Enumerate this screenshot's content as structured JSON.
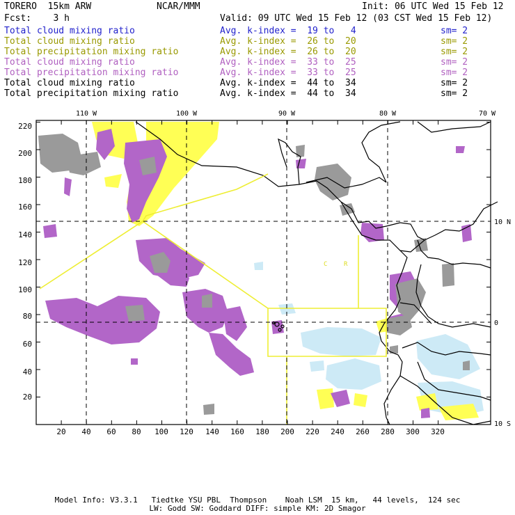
{
  "header": {
    "model": "TORERO  15km ARW",
    "center": "NCAR/MMM",
    "init": "Init: 06 UTC Wed 15 Feb 12",
    "fcst": "Fcst:    3 h",
    "valid": "Valid: 09 UTC Wed 15 Feb 12 (03 CST Wed 15 Feb 12)"
  },
  "legend": [
    {
      "name": "Total cloud mixing ratio",
      "avg": "Avg. k-index =  19 to   4",
      "sm": "sm= 2",
      "color": "#2222cc"
    },
    {
      "name": "Total cloud mixing ratio",
      "avg": "Avg. k-index =  26 to  20",
      "sm": "sm= 2",
      "color": "#999900"
    },
    {
      "name": "Total precipitation mixing ratio",
      "avg": "Avg. k-index =  26 to  20",
      "sm": "sm= 2",
      "color": "#999900"
    },
    {
      "name": "Total cloud mixing ratio",
      "avg": "Avg. k-index =  33 to  25",
      "sm": "sm= 2",
      "color": "#b060c0"
    },
    {
      "name": "Total precipitation mixing ratio",
      "avg": "Avg. k-index =  33 to  25",
      "sm": "sm= 2",
      "color": "#b060c0"
    },
    {
      "name": "Total cloud mixing ratio",
      "avg": "Avg. k-index =  44 to  34",
      "sm": "sm= 2",
      "color": "#000000"
    },
    {
      "name": "Total precipitation mixing ratio",
      "avg": "Avg. k-index =  44 to  34",
      "sm": "sm= 2",
      "color": "#000000"
    }
  ],
  "map": {
    "lon_labels": [
      "110 W",
      "100 W",
      "90 W",
      "80 W",
      "70 W"
    ],
    "lat_labels": [
      "10 N",
      "0",
      "10 S"
    ],
    "x_ticks": [
      "20",
      "40",
      "60",
      "80",
      "100",
      "120",
      "140",
      "160",
      "180",
      "200",
      "220",
      "240",
      "260",
      "280",
      "300",
      "320"
    ],
    "y_ticks": [
      "20",
      "40",
      "60",
      "80",
      "100",
      "120",
      "140",
      "160",
      "180",
      "200",
      "220"
    ],
    "region_labels": [
      "C",
      "R"
    ],
    "colors": {
      "yellow": "#ffff55",
      "purple": "#b266c8",
      "gray": "#9a9a9a",
      "lightblue": "#cdeaf6",
      "box": "#eeee33"
    }
  },
  "footer": {
    "line1": "Model Info: V3.3.1   Tiedtke YSU PBL  Thompson    Noah LSM  15 km,   44 levels,  124 sec",
    "line2": "LW: Godd SW: Goddard DIFF: simple KM: 2D Smagor"
  }
}
